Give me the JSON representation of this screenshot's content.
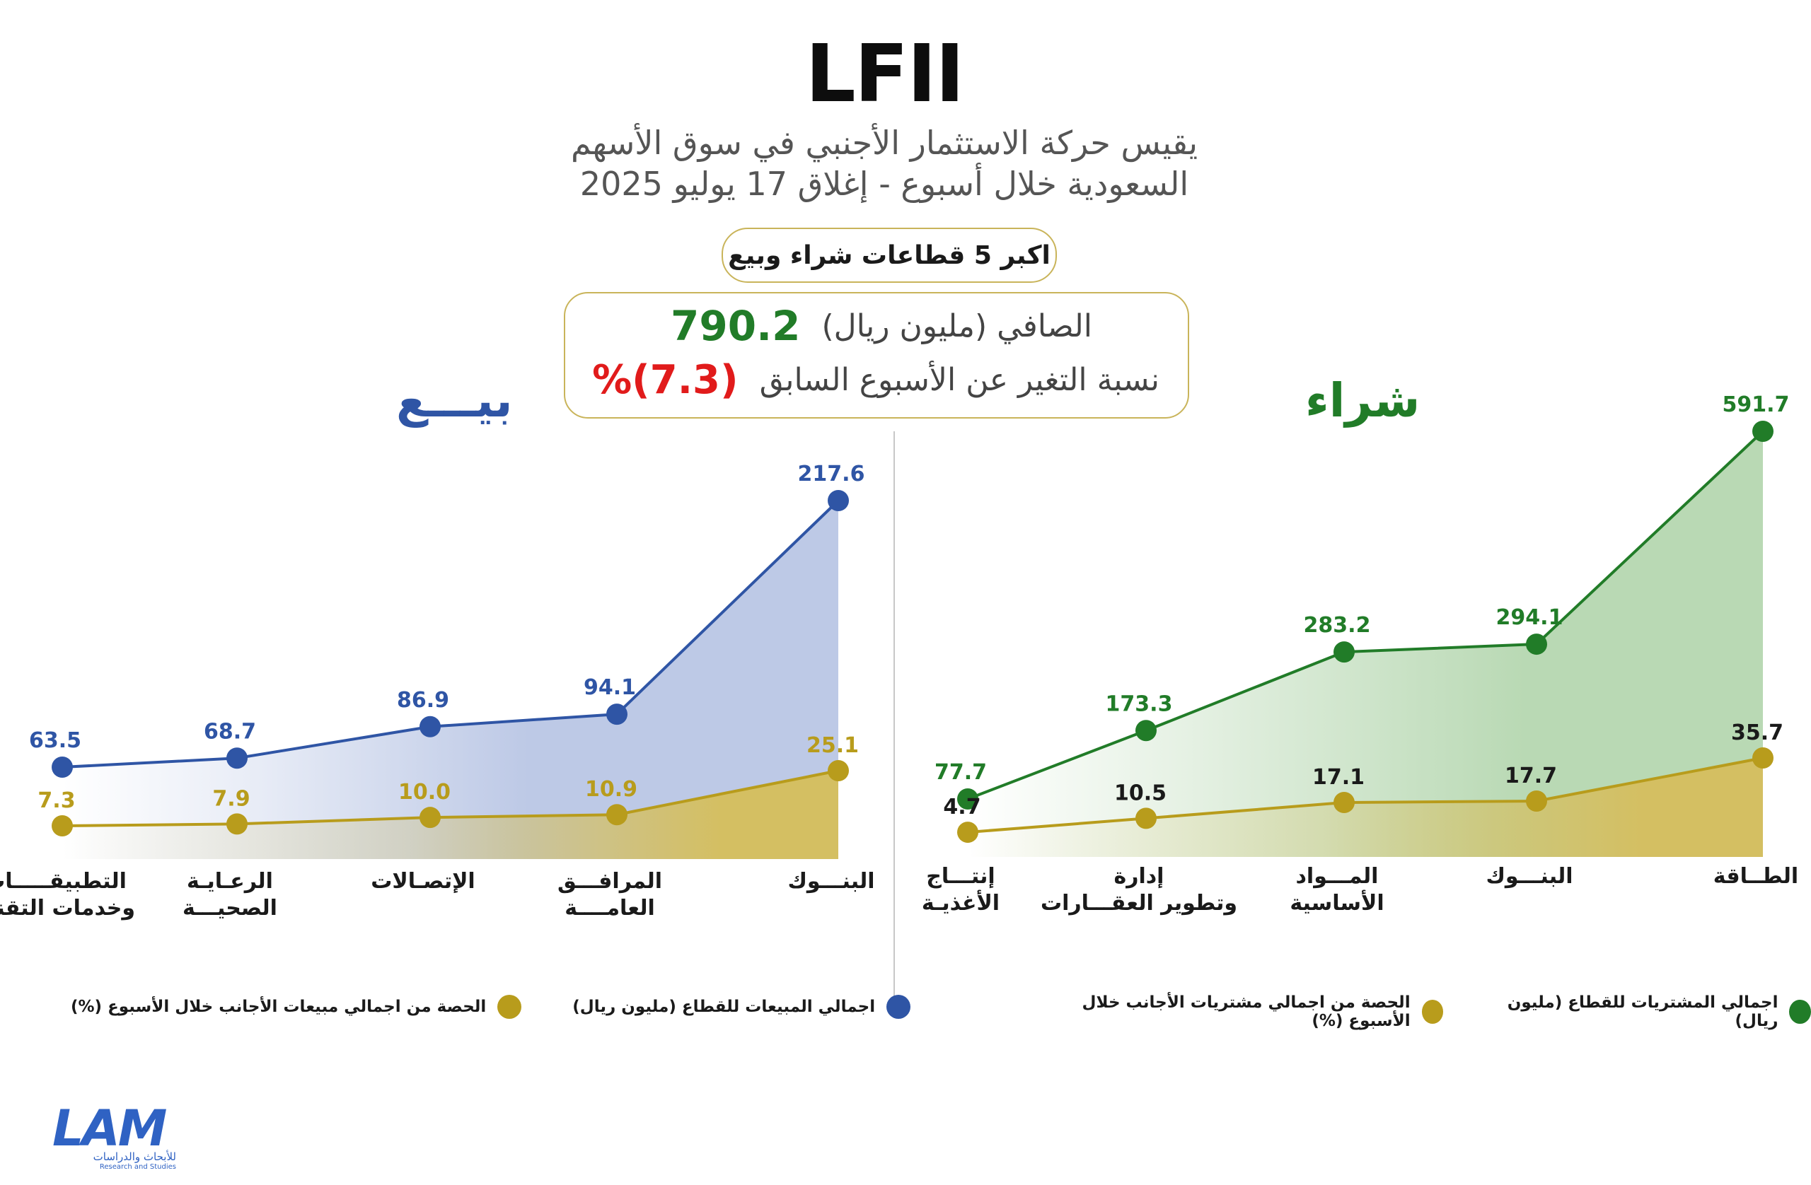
{
  "title": "LFII",
  "subtitle_line1": "يقيس حركة الاستثمار الأجنبي في سوق الأسهم",
  "subtitle_line2": "السعودية خلال أسبوع - إغلاق 17 يوليو 2025",
  "sectors_pill": "اكبر 5 قطاعات شراء وبيع",
  "net": {
    "label": "الصافي (مليون ريال)",
    "value": "790.2",
    "change_label": "نسبة التغير عن الأسبوع السابق",
    "change_value": "(7.3)%"
  },
  "colors": {
    "buy": "#217c28",
    "buy_fill": "#b9d9b4",
    "sell": "#2f55a5",
    "sell_fill": "#bdc9e6",
    "share": "#b89c1c",
    "share_fill": "#d4bf62",
    "net_value": "#217c28",
    "change_value": "#e11b1b"
  },
  "chart_data": [
    {
      "type": "area",
      "side_title": "بيـــع",
      "categories": [
        "التطبيقـــــات وخدمات التقنية",
        "الرعـايـة الصحيـــة",
        "الإتصـالات",
        "المرافـــق العامــــة",
        "البنـــوك"
      ],
      "series": [
        {
          "name": "اجمالي المبيعات للقطاع (مليون ريال)",
          "values": [
            63.5,
            68.7,
            86.9,
            94.1,
            217.6
          ]
        },
        {
          "name": "الحصة من اجمالي مبيعات الأجانب خلال الأسبوع (%)",
          "values": [
            7.3,
            7.9,
            10.0,
            10.9,
            25.1
          ]
        }
      ],
      "value_labels": [
        [
          "63.5",
          "68.7",
          "86.9",
          "94.1",
          "217.6"
        ],
        [
          "7.3",
          "7.9",
          "10.0",
          "10.9",
          "25.1"
        ]
      ]
    },
    {
      "type": "area",
      "side_title": "شراء",
      "categories": [
        "إنتـــاج الأغذيـة",
        "إدارة وتطوير العقـــارات",
        "المـــواد الأساسية",
        "البنـــوك",
        "الطــاقة"
      ],
      "series": [
        {
          "name": "اجمالي المشتريات للقطاع (مليون ريال)",
          "values": [
            77.7,
            173.3,
            283.2,
            294.1,
            591.7
          ]
        },
        {
          "name": "الحصة من اجمالي مشتريات الأجانب خلال الأسبوع (%)",
          "values": [
            4.7,
            10.5,
            17.1,
            17.7,
            35.7
          ]
        }
      ],
      "value_labels": [
        [
          "77.7",
          "173.3",
          "283.2",
          "294.1",
          "591.7"
        ],
        [
          "4.7",
          "10.5",
          "17.1",
          "17.7",
          "35.7"
        ]
      ]
    }
  ],
  "logo": {
    "mark": "LAM",
    "subtext": "للأبحاث والدراسات",
    "subtext_en": "Research and Studies"
  }
}
